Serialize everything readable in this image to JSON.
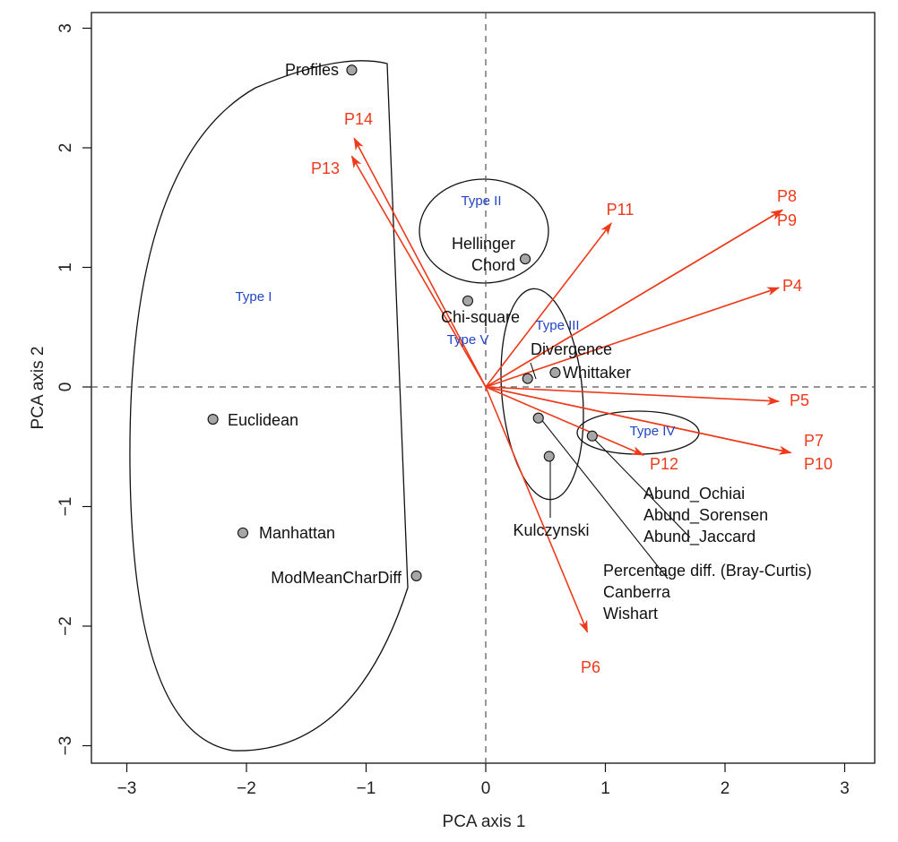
{
  "chart_data": {
    "type": "scatter",
    "title": "",
    "xlabel": "PCA axis 1",
    "ylabel": "PCA axis 2",
    "xlim": [
      -3.2,
      3.2
    ],
    "ylim": [
      -3.2,
      3.1
    ],
    "xticks": [
      -3,
      -2,
      -1,
      0,
      1,
      2,
      3
    ],
    "yticks": [
      -3,
      -2,
      -1,
      0,
      1,
      2,
      3
    ],
    "xtick_labels": [
      "−3",
      "−2",
      "−1",
      "0",
      "1",
      "2",
      "3"
    ],
    "ytick_labels": [
      "−3",
      "−2",
      "−1",
      "0",
      "1",
      "2",
      "3"
    ],
    "grid": false,
    "reference_lines": "dashed lines at x = 0 and y = 0",
    "colors": {
      "points": "#a6a6a6",
      "arrows": "#ee3a1b",
      "type_labels": "#2344c4",
      "outline": "#111111"
    },
    "points": [
      {
        "label": "Profiles",
        "x": -1.12,
        "y": 2.65
      },
      {
        "label": "Hellinger",
        "x": 0.33,
        "y": 1.07
      },
      {
        "label": "Chord",
        "x": 0.33,
        "y": 1.07
      },
      {
        "label": "Chi-square",
        "x": -0.15,
        "y": 0.72
      },
      {
        "label": "Divergence",
        "x": 0.35,
        "y": 0.07
      },
      {
        "label": "Whittaker",
        "x": 0.58,
        "y": 0.12
      },
      {
        "label": "Euclidean",
        "x": -2.28,
        "y": -0.27
      },
      {
        "label": "Manhattan",
        "x": -2.03,
        "y": -1.22
      },
      {
        "label": "ModMeanCharDiff",
        "x": -0.58,
        "y": -1.58
      },
      {
        "label": "Kulczynski",
        "x": 0.53,
        "y": -0.58
      },
      {
        "label": "Abund_Ochiai",
        "x": 0.89,
        "y": -0.41
      },
      {
        "label": "Abund_Sorensen",
        "x": 0.89,
        "y": -0.41
      },
      {
        "label": "Abund_Jaccard",
        "x": 0.89,
        "y": -0.41
      },
      {
        "label": "Percentage diff. (Bray-Curtis)",
        "x": 0.44,
        "y": -0.26
      },
      {
        "label": "Canberra",
        "x": 0.44,
        "y": -0.26
      },
      {
        "label": "Wishart",
        "x": 0.44,
        "y": -0.26
      }
    ],
    "groups": [
      {
        "label": "Type I"
      },
      {
        "label": "Type II"
      },
      {
        "label": "Type III"
      },
      {
        "label": "Type IV"
      },
      {
        "label": "Type V"
      }
    ],
    "arrows": [
      {
        "label": "P14",
        "x": -1.1,
        "y": 2.08
      },
      {
        "label": "P13",
        "x": -1.12,
        "y": 1.93
      },
      {
        "label": "P11",
        "x": 1.05,
        "y": 1.37
      },
      {
        "label": "P8",
        "x": 2.48,
        "y": 1.48
      },
      {
        "label": "P9",
        "x": 2.48,
        "y": 1.48
      },
      {
        "label": "P4",
        "x": 2.45,
        "y": 0.83
      },
      {
        "label": "P5",
        "x": 2.45,
        "y": -0.12
      },
      {
        "label": "P7",
        "x": 2.55,
        "y": -0.55
      },
      {
        "label": "P10",
        "x": 2.55,
        "y": -0.55
      },
      {
        "label": "P12",
        "x": 1.32,
        "y": -0.57
      },
      {
        "label": "P6",
        "x": 0.85,
        "y": -2.05
      }
    ]
  }
}
